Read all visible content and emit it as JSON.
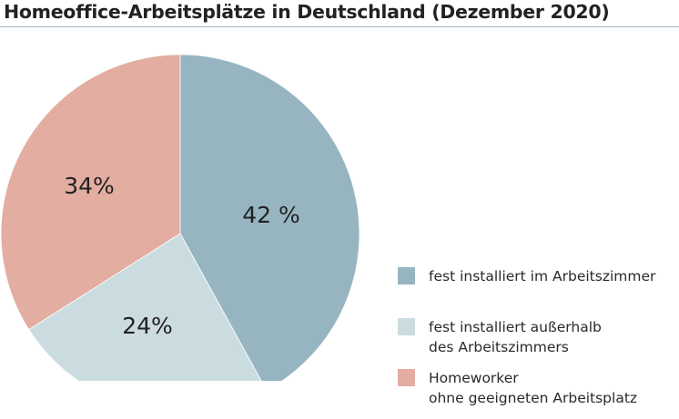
{
  "title": "Homeoffice-Arbeitsplätze in Deutschland (Dezember 2020)",
  "chart_data": {
    "type": "pie",
    "title": "Homeoffice-Arbeitsplätze in Deutschland (Dezember 2020)",
    "slices": [
      {
        "value": 42,
        "label": "42 %",
        "legend": [
          "fest installiert im Arbeitszimmer"
        ],
        "color": "#97b5c1"
      },
      {
        "value": 24,
        "label": "24%",
        "legend": [
          "fest installiert außerhalb",
          "des Arbeitszimmers"
        ],
        "color": "#cbdce1"
      },
      {
        "value": 34,
        "label": "34%",
        "legend": [
          "Homeworker",
          "ohne geeigneten Arbeitsplatz"
        ],
        "color": "#e3ada1"
      }
    ],
    "start_angle": "12 o'clock",
    "direction": "clockwise",
    "legend_position": "bottom-right"
  }
}
